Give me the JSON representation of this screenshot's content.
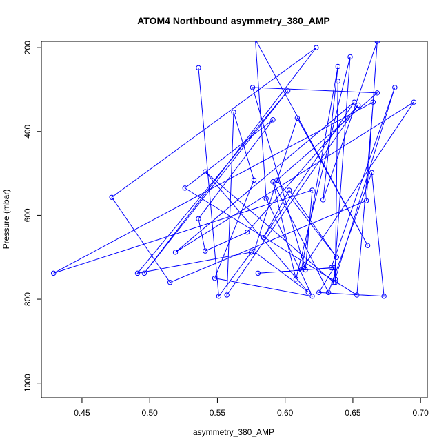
{
  "chart_data": {
    "type": "line",
    "title": "ATOM4 Northbound asymmetry_380_AMP",
    "xlabel": "asymmetry_380_AMP",
    "ylabel": "Pressure (mbar)",
    "xlim": [
      0.42,
      0.705
    ],
    "ylim": [
      1035,
      185
    ],
    "x_ticks": [
      "0.45",
      "0.50",
      "0.55",
      "0.60",
      "0.65",
      "0.70"
    ],
    "y_ticks": [
      "200",
      "400",
      "600",
      "800",
      "1000"
    ],
    "grid": false,
    "legend": "none",
    "series_color": "#0000ff",
    "series": [
      {
        "points": [
          {
            "x": 0.536,
            "y": 248
          },
          {
            "x": 0.551,
            "y": 793
          },
          {
            "x": 0.575,
            "y": 688
          },
          {
            "x": 0.491,
            "y": 738
          },
          {
            "x": 0.602,
            "y": 303
          },
          {
            "x": 0.496,
            "y": 738
          },
          {
            "x": 0.623,
            "y": 200
          },
          {
            "x": 0.472,
            "y": 557
          },
          {
            "x": 0.515,
            "y": 760
          },
          {
            "x": 0.66,
            "y": 565
          },
          {
            "x": 0.668,
            "y": 185
          },
          {
            "x": 0.628,
            "y": 563
          },
          {
            "x": 0.639,
            "y": 245
          },
          {
            "x": 0.612,
            "y": 730
          },
          {
            "x": 0.695,
            "y": 330
          },
          {
            "x": 0.519,
            "y": 688
          },
          {
            "x": 0.651,
            "y": 330
          },
          {
            "x": 0.584,
            "y": 653
          },
          {
            "x": 0.603,
            "y": 540
          },
          {
            "x": 0.638,
            "y": 700
          },
          {
            "x": 0.594,
            "y": 516
          },
          {
            "x": 0.668,
            "y": 308
          },
          {
            "x": 0.576,
            "y": 295
          },
          {
            "x": 0.615,
            "y": 730
          },
          {
            "x": 0.62,
            "y": 540
          },
          {
            "x": 0.429,
            "y": 738
          },
          {
            "x": 0.665,
            "y": 330
          },
          {
            "x": 0.653,
            "y": 790
          },
          {
            "x": 0.526,
            "y": 535
          },
          {
            "x": 0.591,
            "y": 372
          },
          {
            "x": 0.536,
            "y": 608
          },
          {
            "x": 0.541,
            "y": 685
          },
          {
            "x": 0.572,
            "y": 640
          },
          {
            "x": 0.654,
            "y": 337
          },
          {
            "x": 0.557,
            "y": 790
          },
          {
            "x": 0.562,
            "y": 354
          },
          {
            "x": 0.577,
            "y": 516
          },
          {
            "x": 0.548,
            "y": 750
          },
          {
            "x": 0.62,
            "y": 793
          },
          {
            "x": 0.586,
            "y": 560
          },
          {
            "x": 0.578,
            "y": 180
          },
          {
            "x": 0.661,
            "y": 672
          },
          {
            "x": 0.609,
            "y": 368
          },
          {
            "x": 0.577,
            "y": 686
          },
          {
            "x": 0.617,
            "y": 783
          },
          {
            "x": 0.541,
            "y": 496
          },
          {
            "x": 0.636,
            "y": 760
          },
          {
            "x": 0.648,
            "y": 222
          },
          {
            "x": 0.608,
            "y": 752
          },
          {
            "x": 0.591,
            "y": 520
          },
          {
            "x": 0.632,
            "y": 784
          },
          {
            "x": 0.664,
            "y": 498
          },
          {
            "x": 0.673,
            "y": 793
          },
          {
            "x": 0.625,
            "y": 784
          },
          {
            "x": 0.636,
            "y": 725
          },
          {
            "x": 0.58,
            "y": 738
          },
          {
            "x": 0.634,
            "y": 725
          },
          {
            "x": 0.681,
            "y": 295
          },
          {
            "x": 0.637,
            "y": 752
          },
          {
            "x": 0.639,
            "y": 280
          },
          {
            "x": 0.637,
            "y": 760
          }
        ]
      }
    ]
  }
}
